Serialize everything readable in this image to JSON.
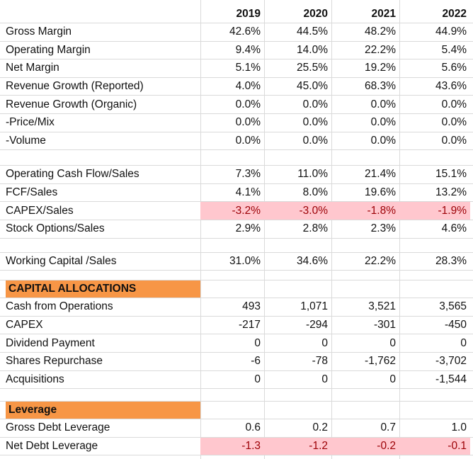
{
  "years": [
    "2019",
    "2020",
    "2021",
    "2022"
  ],
  "ratios": [
    {
      "label": "Gross Margin",
      "values": [
        "42.6%",
        "44.5%",
        "48.2%",
        "44.9%"
      ]
    },
    {
      "label": "Operating Margin",
      "values": [
        "9.4%",
        "14.0%",
        "22.2%",
        "5.4%"
      ]
    },
    {
      "label": "Net Margin",
      "values": [
        "5.1%",
        "25.5%",
        "19.2%",
        "5.6%"
      ]
    },
    {
      "label": "Revenue Growth (Reported)",
      "values": [
        "4.0%",
        "45.0%",
        "68.3%",
        "43.6%"
      ]
    },
    {
      "label": "Revenue Growth (Organic)",
      "values": [
        "0.0%",
        "0.0%",
        "0.0%",
        "0.0%"
      ]
    },
    {
      "label": "-Price/Mix",
      "values": [
        "0.0%",
        "0.0%",
        "0.0%",
        "0.0%"
      ]
    },
    {
      "label": "-Volume",
      "values": [
        "0.0%",
        "0.0%",
        "0.0%",
        "0.0%"
      ]
    }
  ],
  "cash_ratios": [
    {
      "label": "Operating Cash Flow/Sales",
      "values": [
        "7.3%",
        "11.0%",
        "21.4%",
        "15.1%"
      ]
    },
    {
      "label": "FCF/Sales",
      "values": [
        "4.1%",
        "8.0%",
        "19.6%",
        "13.2%"
      ]
    },
    {
      "label": "CAPEX/Sales",
      "values": [
        "-3.2%",
        "-3.0%",
        "-1.8%",
        "-1.9%"
      ],
      "highlight": true
    },
    {
      "label": "Stock Options/Sales",
      "values": [
        "2.9%",
        "2.8%",
        "2.3%",
        "4.6%"
      ]
    }
  ],
  "working_capital": {
    "label": "Working Capital /Sales",
    "values": [
      "31.0%",
      "34.6%",
      "22.2%",
      "28.3%"
    ]
  },
  "capital_allocations": {
    "title": "CAPITAL ALLOCATIONS",
    "rows": [
      {
        "label": "Cash from Operations",
        "values": [
          "493",
          "1,071",
          "3,521",
          "3,565"
        ]
      },
      {
        "label": "CAPEX",
        "values": [
          "-217",
          "-294",
          "-301",
          "-450"
        ]
      },
      {
        "label": "Dividend Payment",
        "values": [
          "0",
          "0",
          "0",
          "0"
        ]
      },
      {
        "label": "Shares Repurchase",
        "values": [
          "-6",
          "-78",
          "-1,762",
          "-3,702"
        ]
      },
      {
        "label": "Acquisitions",
        "values": [
          "0",
          "0",
          "0",
          "-1,544"
        ]
      }
    ]
  },
  "leverage": {
    "title": "Leverage",
    "rows": [
      {
        "label": "Gross Debt Leverage",
        "values": [
          "0.6",
          "0.2",
          "0.7",
          "1.0"
        ]
      },
      {
        "label": "Net Debt Leverage",
        "values": [
          "-1.3",
          "-1.2",
          "-0.2",
          "-0.1"
        ],
        "highlight": true
      }
    ]
  },
  "colors": {
    "section_fill": "#f79646",
    "negative_fill": "#ffc7ce",
    "negative_text": "#9c0006"
  }
}
